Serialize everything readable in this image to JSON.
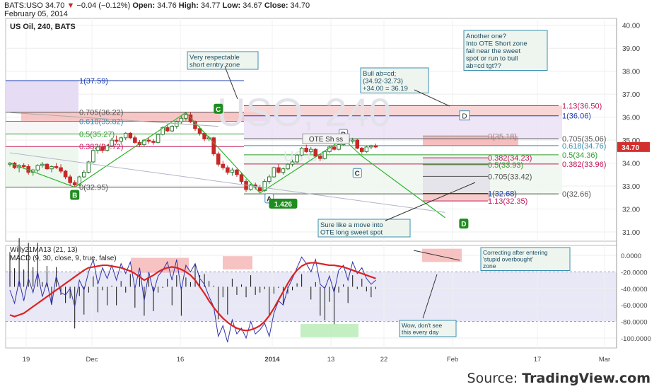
{
  "header": {
    "symbol": "BATS:USO",
    "last": "34.70",
    "change": "−0.04 (−0.12%)",
    "open_label": "Open:",
    "open": "34.76",
    "high_label": "High:",
    "high": "34.77",
    "low_label": "Low:",
    "low": "34.67",
    "close_label": "Close:",
    "close": "34.70",
    "date": "February 05, 2014"
  },
  "source": {
    "prefix": "Source: ",
    "brand": "TradingView.com"
  },
  "colors": {
    "up": "#2e7d32",
    "down": "#c62828",
    "zigzag": "#2db52d",
    "macd_fast": "#3333aa",
    "macd_slow": "#dd2222",
    "fib_purple": "#7b1fa2",
    "fib_blue": "#1e3fb0",
    "fib_red": "#c2185b",
    "fib_teal": "#3a8fb0",
    "fib_green": "#2e9e2e",
    "price_tag": "#d32f2f",
    "note_bg": "#eef5ee",
    "note_border": "#3a8fb0",
    "note_text": "#1a4d66"
  },
  "chart_data": [
    {
      "type": "candlestick",
      "title": "US Oil, 240, BATS",
      "watermark": "USO, 240",
      "watermark_sub": "US Oil",
      "ylim": [
        30.6,
        40.3
      ],
      "yticks": [
        "40.00",
        "39.00",
        "38.00",
        "37.00",
        "36.00",
        "35.00",
        "34.00",
        "33.00",
        "32.00",
        "31.00"
      ],
      "xticks": [
        "19",
        "Dec",
        "16",
        "2014",
        "13",
        "22",
        "Feb",
        "17",
        "Mar"
      ],
      "grid": true,
      "last_price_tag": "34.70",
      "candles": [
        [
          33.95,
          34.05,
          33.85,
          34.0
        ],
        [
          34.0,
          34.05,
          33.75,
          33.8
        ],
        [
          33.8,
          33.95,
          33.6,
          33.9
        ],
        [
          33.9,
          34.0,
          33.75,
          33.85
        ],
        [
          33.85,
          33.95,
          33.5,
          33.6
        ],
        [
          33.6,
          33.75,
          33.45,
          33.7
        ],
        [
          33.7,
          33.95,
          33.6,
          33.9
        ],
        [
          33.9,
          34.05,
          33.8,
          33.95
        ],
        [
          33.95,
          34.0,
          33.7,
          33.75
        ],
        [
          33.75,
          33.9,
          33.6,
          33.85
        ],
        [
          33.85,
          34.0,
          33.75,
          33.8
        ],
        [
          33.8,
          33.95,
          33.55,
          33.65
        ],
        [
          33.65,
          33.7,
          33.3,
          33.4
        ],
        [
          33.4,
          33.5,
          33.05,
          33.15
        ],
        [
          33.15,
          33.25,
          32.95,
          33.05
        ],
        [
          33.05,
          33.45,
          33.0,
          33.4
        ],
        [
          33.4,
          33.7,
          33.35,
          33.6
        ],
        [
          33.6,
          34.1,
          33.55,
          34.05
        ],
        [
          34.05,
          34.6,
          34.0,
          34.55
        ],
        [
          34.55,
          34.8,
          34.4,
          34.7
        ],
        [
          34.7,
          34.85,
          34.45,
          34.55
        ],
        [
          34.55,
          34.8,
          34.5,
          34.75
        ],
        [
          34.75,
          35.1,
          34.7,
          35.0
        ],
        [
          35.0,
          35.2,
          34.85,
          34.95
        ],
        [
          34.95,
          35.15,
          34.85,
          35.1
        ],
        [
          35.1,
          35.35,
          35.0,
          35.3
        ],
        [
          35.3,
          35.35,
          35.05,
          35.1
        ],
        [
          35.1,
          35.2,
          34.85,
          34.9
        ],
        [
          34.9,
          35.0,
          34.7,
          34.8
        ],
        [
          34.8,
          35.05,
          34.75,
          35.0
        ],
        [
          35.0,
          35.1,
          34.85,
          34.95
        ],
        [
          34.95,
          35.05,
          34.8,
          34.9
        ],
        [
          34.9,
          35.3,
          34.85,
          35.25
        ],
        [
          35.25,
          35.6,
          35.2,
          35.55
        ],
        [
          35.55,
          35.7,
          35.35,
          35.4
        ],
        [
          35.4,
          35.65,
          35.35,
          35.6
        ],
        [
          35.6,
          35.85,
          35.5,
          35.8
        ],
        [
          35.8,
          36.05,
          35.7,
          35.95
        ],
        [
          35.95,
          36.2,
          35.85,
          36.1
        ],
        [
          36.1,
          36.2,
          35.75,
          35.8
        ],
        [
          35.8,
          35.85,
          35.4,
          35.5
        ],
        [
          35.5,
          35.6,
          35.2,
          35.3
        ],
        [
          35.3,
          35.35,
          34.95,
          35.05
        ],
        [
          35.05,
          35.2,
          34.95,
          35.1
        ],
        [
          35.1,
          35.15,
          34.3,
          34.4
        ],
        [
          34.4,
          34.5,
          33.85,
          33.95
        ],
        [
          33.95,
          34.1,
          33.7,
          33.8
        ],
        [
          33.8,
          33.9,
          33.5,
          33.6
        ],
        [
          33.6,
          33.8,
          33.45,
          33.7
        ],
        [
          33.7,
          33.75,
          33.4,
          33.5
        ],
        [
          33.5,
          33.6,
          33.1,
          33.2
        ],
        [
          33.2,
          33.3,
          32.75,
          32.85
        ],
        [
          32.85,
          33.1,
          32.8,
          33.05
        ],
        [
          33.05,
          33.15,
          32.85,
          32.95
        ],
        [
          32.95,
          33.05,
          32.75,
          32.8
        ],
        [
          32.8,
          33.3,
          32.75,
          33.2
        ],
        [
          33.2,
          33.5,
          33.1,
          33.4
        ],
        [
          33.4,
          33.85,
          33.35,
          33.8
        ],
        [
          33.8,
          33.95,
          33.55,
          33.6
        ],
        [
          33.6,
          33.8,
          33.5,
          33.75
        ],
        [
          33.75,
          34.0,
          33.7,
          33.95
        ],
        [
          33.95,
          34.15,
          33.85,
          34.05
        ],
        [
          34.05,
          34.4,
          34.0,
          34.35
        ],
        [
          34.35,
          34.7,
          34.3,
          34.65
        ],
        [
          34.65,
          34.8,
          34.45,
          34.5
        ],
        [
          34.5,
          34.7,
          34.4,
          34.6
        ],
        [
          34.6,
          34.65,
          34.25,
          34.3
        ],
        [
          34.3,
          34.4,
          34.1,
          34.2
        ],
        [
          34.2,
          34.55,
          34.15,
          34.5
        ],
        [
          34.5,
          34.75,
          34.45,
          34.7
        ],
        [
          34.7,
          34.8,
          34.55,
          34.6
        ],
        [
          34.6,
          34.85,
          34.55,
          34.8
        ],
        [
          34.8,
          35.1,
          34.75,
          35.05
        ],
        [
          35.05,
          35.15,
          34.9,
          34.95
        ],
        [
          34.95,
          35.1,
          34.85,
          35.0
        ],
        [
          35.0,
          35.05,
          34.6,
          34.65
        ],
        [
          34.65,
          34.7,
          34.4,
          34.5
        ],
        [
          34.5,
          34.75,
          34.45,
          34.7
        ],
        [
          34.7,
          34.8,
          34.6,
          34.75
        ],
        [
          34.75,
          34.85,
          34.65,
          34.7
        ]
      ],
      "zigzag": [
        [
          0,
          34.0
        ],
        [
          14,
          32.95
        ],
        [
          38,
          36.2
        ],
        [
          54,
          32.7
        ],
        [
          72,
          35.05
        ],
        [
          76,
          34.3
        ],
        [
          94,
          31.62
        ]
      ],
      "zigzag_labels": [
        {
          "text": "B",
          "i": 14,
          "v": 32.6
        },
        {
          "text": "C",
          "i": 45,
          "v": 36.35
        },
        {
          "text": "A",
          "i": 56,
          "v": 32.45
        },
        {
          "text": "1.426",
          "i": 59,
          "v": 32.22
        },
        {
          "text": "B",
          "i": 72,
          "v": 35.25
        },
        {
          "text": "C",
          "i": 75,
          "v": 33.55
        },
        {
          "text": "D",
          "i": 98,
          "v": 31.35
        }
      ],
      "fib_left": {
        "levels": [
          {
            "ratio": "1",
            "value": "(37.59)",
            "v": 37.59,
            "color": "#1e3fb0"
          },
          {
            "ratio": "0.705",
            "value": "(36.22)",
            "v": 36.22,
            "color": "#555"
          },
          {
            "ratio": "0.618",
            "value": "(35.82)",
            "v": 35.82,
            "color": "#3a8fb0"
          },
          {
            "ratio": "0.5",
            "value": "(35.27)",
            "v": 35.27,
            "color": "#2e9e2e"
          },
          {
            "ratio": "0.382",
            "value": "(34.72)",
            "v": 34.72,
            "color": "#c2185b"
          },
          {
            "ratio": "0",
            "value": "(32.95)",
            "v": 32.95,
            "color": "#555"
          }
        ]
      },
      "fib_right": {
        "levels": [
          {
            "ratio": "1.13",
            "value": "(36.50)",
            "v": 36.5,
            "color": "#c2185b"
          },
          {
            "ratio": "1",
            "value": "(36.06)",
            "v": 36.06,
            "color": "#1e3fb0"
          },
          {
            "ratio": "0.705",
            "value": "(35.06)",
            "v": 35.06,
            "color": "#555"
          },
          {
            "ratio": "0.618",
            "value": "(34.76)",
            "v": 34.76,
            "color": "#3a8fb0"
          },
          {
            "ratio": "0.5",
            "value": "(34.36)",
            "v": 34.36,
            "color": "#2e9e2e"
          },
          {
            "ratio": "0.382",
            "value": "(33.96)",
            "v": 33.96,
            "color": "#c2185b"
          },
          {
            "ratio": "0",
            "value": "(32.66)",
            "v": 32.66,
            "color": "#555"
          }
        ]
      },
      "fib_inner": {
        "levels": [
          {
            "ratio": "0",
            "value": "(35.18)",
            "v": 35.18,
            "color": "#888"
          },
          {
            "ratio": "0.382",
            "value": "(34.23)",
            "v": 34.23,
            "color": "#c2185b"
          },
          {
            "ratio": "0.5",
            "value": "(33.93)",
            "v": 33.93,
            "color": "#2e9e2e"
          },
          {
            "ratio": "0.705",
            "value": "(33.42)",
            "v": 33.42,
            "color": "#555"
          },
          {
            "ratio": "1",
            "value": "(32.68)",
            "v": 32.68,
            "color": "#1e3fb0"
          },
          {
            "ratio": "1.13",
            "value": "(32.35)",
            "v": 32.35,
            "color": "#c2185b"
          }
        ]
      },
      "annotations": [
        {
          "lines": [
            "Very respectable",
            "short erntry zone"
          ]
        },
        {
          "lines": [
            "Bull ab=cd;",
            "(34.92-32.73)",
            "+34.00 = 36.19"
          ]
        },
        {
          "lines": [
            "Another one?",
            "Into OTE Short zone",
            "fail near the sweet",
            "spot or run to bull",
            "ab=cd tgt??"
          ]
        },
        {
          "lines": [
            "Sure like a move into",
            "OTE long sweet spot"
          ]
        }
      ],
      "ote_label": "OTE Sh ss"
    },
    {
      "type": "line",
      "title": "Willy21MA13 (21, 13)",
      "subtitle": "MACD (9, 30, close, 9, true, false)",
      "ylim": [
        -112,
        12
      ],
      "yticks": [
        "0.0000",
        "-20.0000",
        "-40.0000",
        "-60.0000",
        "-80.0000",
        "-100.0000"
      ],
      "series": [
        {
          "role": "fast",
          "values": [
            -42,
            -58,
            -30,
            -55,
            -28,
            -45,
            -20,
            -50,
            -32,
            -60,
            -25,
            -45,
            -48,
            -40,
            -62,
            -30,
            -42,
            -20,
            -5,
            -35,
            -15,
            -28,
            -12,
            -30,
            -10,
            -22,
            -8,
            -40,
            -15,
            -55,
            -20,
            -45,
            -25,
            -18,
            -8,
            -30,
            -5,
            -42,
            -12,
            -20,
            -10,
            -28,
            -35,
            -50,
            -62,
            -98,
            -85,
            -105,
            -78,
            -95,
            -88,
            -100,
            -80,
            -95,
            -90,
            -82,
            -98,
            -70,
            -55,
            -60,
            -40,
            -28,
            -15,
            -2,
            -10,
            -20,
            -5,
            -35,
            -40,
            -25,
            -45,
            -18,
            -12,
            -30,
            -8,
            -22,
            -15,
            -28,
            -35,
            -30
          ]
        },
        {
          "role": "signal",
          "values": [
            -72,
            -74,
            -72,
            -70,
            -66,
            -62,
            -58,
            -54,
            -50,
            -46,
            -42,
            -38,
            -34,
            -30,
            -26,
            -22,
            -18,
            -15,
            -14,
            -13,
            -12,
            -12,
            -13,
            -14,
            -15,
            -17,
            -19,
            -22,
            -26,
            -30,
            -27,
            -24,
            -20,
            -17,
            -15,
            -14,
            -15,
            -17,
            -20,
            -24,
            -30,
            -38,
            -46,
            -55,
            -63,
            -70,
            -76,
            -81,
            -85,
            -88,
            -90,
            -91,
            -90,
            -88,
            -85,
            -80,
            -73,
            -64,
            -54,
            -44,
            -34,
            -25,
            -18,
            -13,
            -10,
            -9,
            -9,
            -10,
            -11,
            -12,
            -12,
            -13,
            -14,
            -16,
            -18,
            -20,
            -22,
            -24,
            -26,
            -28
          ]
        }
      ]
    }
  ]
}
